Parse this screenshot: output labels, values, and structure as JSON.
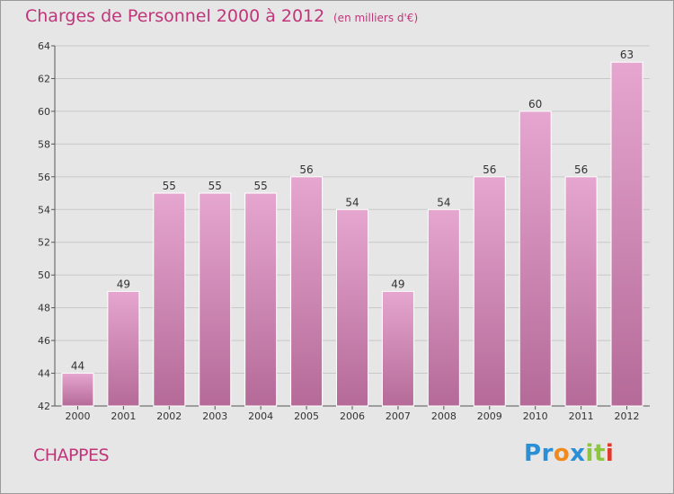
{
  "header": {
    "title": "Charges de Personnel 2000 à 2012",
    "subtitle": "(en milliers d'€)"
  },
  "footer": {
    "commune": "CHAPPES",
    "logo_text": "Proxiti",
    "logo_letters": [
      {
        "char": "P",
        "color": "#2b8fd6"
      },
      {
        "char": "r",
        "color": "#2b8fd6"
      },
      {
        "char": "o",
        "color": "#f08a1c"
      },
      {
        "char": "x",
        "color": "#2b8fd6"
      },
      {
        "char": "i",
        "color": "#8cc63f"
      },
      {
        "char": "t",
        "color": "#8cc63f"
      },
      {
        "char": "i",
        "color": "#e0392b"
      }
    ]
  },
  "chart_data": {
    "type": "bar",
    "categories": [
      "2000",
      "2001",
      "2002",
      "2003",
      "2004",
      "2005",
      "2006",
      "2007",
      "2008",
      "2009",
      "2010",
      "2011",
      "2012"
    ],
    "values": [
      44,
      49,
      55,
      55,
      55,
      56,
      54,
      49,
      54,
      56,
      60,
      56,
      63
    ],
    "data_labels": [
      "44",
      "49",
      "55",
      "55",
      "55",
      "56",
      "54",
      "49",
      "54",
      "56",
      "60",
      "56",
      "63"
    ],
    "yticks": [
      "42",
      "44",
      "46",
      "48",
      "50",
      "52",
      "54",
      "56",
      "58",
      "60",
      "62",
      "64"
    ],
    "ylim": [
      42,
      64
    ],
    "grid": true,
    "bar_color_top": "#e5a6cf",
    "bar_color_bottom": "#b56a98",
    "text_color": "#333333"
  }
}
